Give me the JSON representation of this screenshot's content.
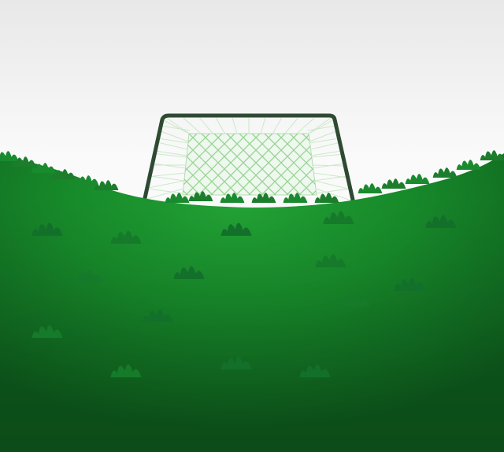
{
  "scene": {
    "objects": [
      "soccer-goal",
      "grass-field",
      "sky"
    ],
    "colors": {
      "sky_top": "#e9e9e9",
      "sky_bottom": "#ffffff",
      "grass_light": "#22a235",
      "grass_mid": "#178a2a",
      "grass_dark": "#0d5a1c",
      "goal_frame": "#2f4a33",
      "goal_net": "#d8f0d6"
    }
  }
}
